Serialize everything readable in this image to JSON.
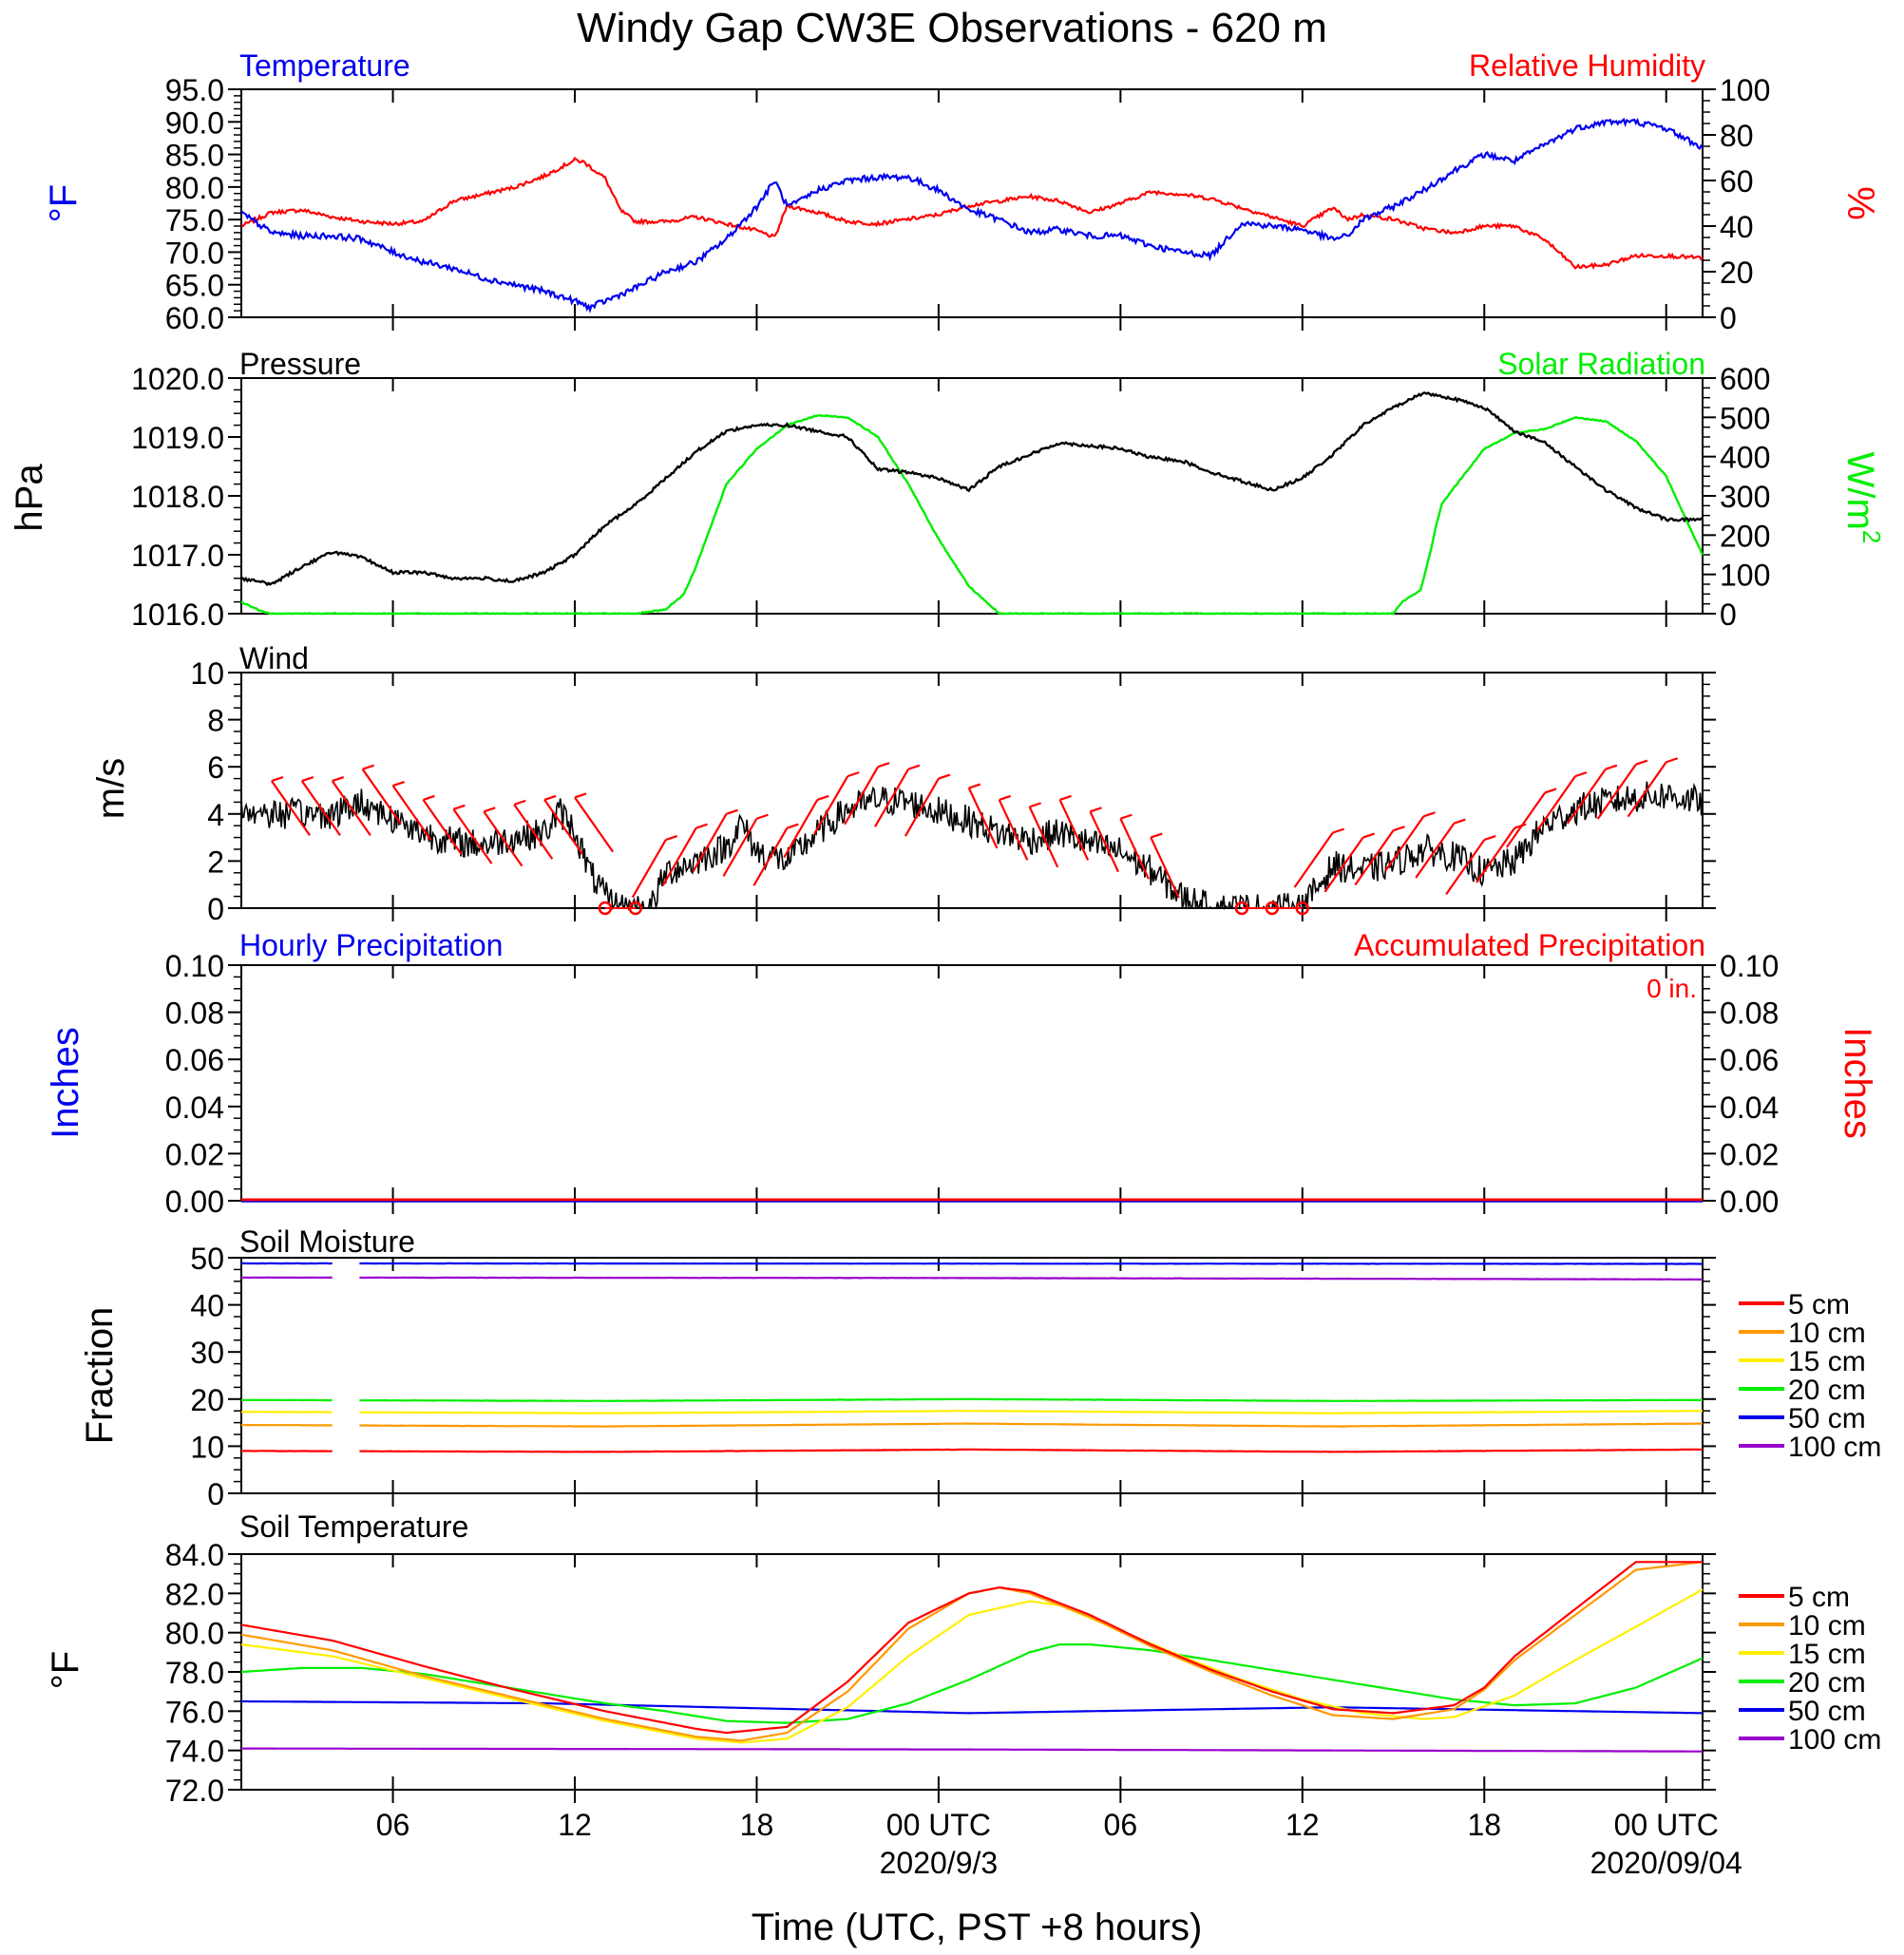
{
  "title": "Windy Gap CW3E Observations - 620 m",
  "x_axis": {
    "label": "Time (UTC, PST +8 hours)",
    "range_hours": [
      0,
      48.2
    ],
    "ticks": [
      {
        "hour": 5,
        "label": "06"
      },
      {
        "hour": 11,
        "label": "12"
      },
      {
        "hour": 17,
        "label": "18"
      },
      {
        "hour": 23,
        "label": "00 UTC",
        "date": "2020/9/3"
      },
      {
        "hour": 29,
        "label": "06"
      },
      {
        "hour": 35,
        "label": "12"
      },
      {
        "hour": 41,
        "label": "18"
      },
      {
        "hour": 47,
        "label": "00 UTC",
        "date": "2020/09/04"
      }
    ]
  },
  "panels": {
    "temp_rh": {
      "left_title": "Temperature",
      "right_title": "Relative Humidity",
      "left_unit": "°F",
      "right_unit": "%",
      "left_ticks": [
        "60.0",
        "65.0",
        "70.0",
        "75.0",
        "80.0",
        "85.0",
        "90.0",
        "95.0"
      ],
      "right_ticks": [
        "0",
        "20",
        "40",
        "60",
        "80",
        "100"
      ]
    },
    "pressure_solar": {
      "left_title": "Pressure",
      "right_title": "Solar Radiation",
      "left_unit": "hPa",
      "right_unit": "W/m",
      "right_unit_sup": "2",
      "left_ticks": [
        "1016.0",
        "1017.0",
        "1018.0",
        "1019.0",
        "1020.0"
      ],
      "right_ticks": [
        "0",
        "100",
        "200",
        "300",
        "400",
        "500",
        "600"
      ]
    },
    "wind": {
      "title": "Wind",
      "unit": "m/s",
      "ticks": [
        "0",
        "2",
        "4",
        "6",
        "8",
        "10"
      ]
    },
    "precip": {
      "left_title": "Hourly Precipitation",
      "right_title": "Accumulated Precipitation",
      "accum_label": "0 in.",
      "left_unit": "Inches",
      "right_unit": "Inches",
      "ticks": [
        "0.00",
        "0.02",
        "0.04",
        "0.06",
        "0.08",
        "0.10"
      ]
    },
    "soil_moisture": {
      "title": "Soil Moisture",
      "unit": "Fraction",
      "ticks": [
        "0",
        "10",
        "20",
        "30",
        "40",
        "50"
      ]
    },
    "soil_temp": {
      "title": "Soil Temperature",
      "unit": "°F",
      "ticks": [
        "72.0",
        "74.0",
        "76.0",
        "78.0",
        "80.0",
        "82.0",
        "84.0"
      ]
    }
  },
  "legend": [
    {
      "label": "5 cm",
      "color": "#ff0000"
    },
    {
      "label": "10 cm",
      "color": "#ff9900"
    },
    {
      "label": "15 cm",
      "color": "#ffee00"
    },
    {
      "label": "20 cm",
      "color": "#00ee00"
    },
    {
      "label": "50 cm",
      "color": "#0000ee"
    },
    {
      "label": "100 cm",
      "color": "#9900cc"
    }
  ],
  "chart_data": [
    {
      "type": "line",
      "panel": "temp_rh",
      "xlabel": "",
      "x_units": "hours since start",
      "series": [
        {
          "name": "Temperature",
          "axis": "left",
          "ylim": [
            60,
            95
          ],
          "color": "#0000ee",
          "x": [
            0,
            1,
            2,
            3,
            4,
            5,
            6,
            7,
            8,
            9,
            10,
            11,
            11.5,
            12,
            13,
            14,
            15,
            16,
            17,
            17.6,
            18,
            18.3,
            19,
            20,
            21,
            22,
            23,
            24,
            25,
            26,
            27,
            28,
            29,
            30,
            31,
            32,
            33,
            34,
            35,
            36,
            36.5,
            37,
            38,
            39,
            40,
            41,
            42,
            43,
            44,
            45,
            46,
            47,
            48.2
          ],
          "y": [
            76,
            73,
            72.5,
            72.5,
            72,
            70,
            68.5,
            67.5,
            66,
            65,
            64,
            62.5,
            61.5,
            62.5,
            64.5,
            67,
            68.5,
            72,
            77,
            81,
            77,
            77.5,
            79.5,
            81,
            81.5,
            81.5,
            79.5,
            76.5,
            75,
            73,
            73.5,
            72.5,
            72.5,
            71,
            70,
            69.5,
            74.5,
            74,
            73.5,
            72,
            72.5,
            75,
            77,
            79.5,
            82.5,
            85,
            84,
            86.5,
            89,
            90,
            90,
            89,
            86
          ]
        },
        {
          "name": "Relative Humidity",
          "axis": "right",
          "ylim": [
            0,
            100
          ],
          "color": "#ff0000",
          "x": [
            0,
            1,
            2,
            3,
            4,
            5,
            6,
            7,
            8,
            9,
            10,
            11,
            11.3,
            12,
            12.5,
            13,
            14,
            15,
            16,
            17,
            17.6,
            18,
            19,
            20,
            21,
            22,
            23,
            24,
            25,
            26,
            27,
            28,
            29,
            30,
            31,
            32,
            33,
            34,
            35,
            36,
            36.5,
            37,
            38,
            39,
            40,
            41,
            42,
            43,
            44,
            45,
            46,
            47,
            48.2
          ],
          "y": [
            40,
            46,
            47,
            44,
            42,
            41,
            42,
            51,
            54,
            57,
            62,
            69,
            68,
            61,
            47,
            42,
            42,
            44,
            41,
            38,
            35,
            49,
            46,
            42,
            41,
            43,
            45,
            49,
            51,
            53,
            51,
            46,
            50,
            55,
            54,
            52,
            48,
            44,
            40,
            48,
            43,
            45,
            43,
            39,
            37,
            40,
            40,
            34,
            22,
            23,
            27,
            27,
            26
          ]
        }
      ]
    },
    {
      "type": "line",
      "panel": "pressure_solar",
      "xlabel": "",
      "x_units": "hours since start",
      "series": [
        {
          "name": "Pressure",
          "axis": "left",
          "ylim": [
            1016,
            1020
          ],
          "color": "#000000",
          "x": [
            0,
            1,
            2,
            3,
            4,
            5,
            6,
            7,
            8,
            9,
            10,
            11,
            12,
            13,
            14,
            15,
            16,
            17,
            18,
            19,
            20,
            21,
            22,
            23,
            24,
            25,
            26,
            27,
            28,
            29,
            30,
            31,
            32,
            33,
            34,
            35,
            36,
            37,
            38,
            39,
            40,
            41,
            42,
            43,
            44,
            45,
            46,
            47,
            48.2
          ],
          "y": [
            1016.6,
            1016.5,
            1016.8,
            1017.05,
            1016.95,
            1016.7,
            1016.7,
            1016.6,
            1016.6,
            1016.55,
            1016.7,
            1017.0,
            1017.5,
            1017.85,
            1018.3,
            1018.75,
            1019.1,
            1019.2,
            1019.2,
            1019.1,
            1019.0,
            1018.45,
            1018.4,
            1018.3,
            1018.1,
            1018.5,
            1018.7,
            1018.9,
            1018.85,
            1018.8,
            1018.65,
            1018.6,
            1018.4,
            1018.25,
            1018.1,
            1018.3,
            1018.7,
            1019.2,
            1019.5,
            1019.75,
            1019.65,
            1019.5,
            1019.1,
            1018.9,
            1018.5,
            1018.1,
            1017.8,
            1017.6,
            1017.6
          ]
        },
        {
          "name": "Solar Radiation",
          "axis": "right",
          "ylim": [
            0,
            600
          ],
          "color": "#00ee00",
          "x": [
            0,
            0.7,
            1,
            12,
            13,
            14,
            14.6,
            15,
            16,
            17,
            18,
            19,
            20,
            21,
            22,
            23,
            24,
            25,
            26,
            38,
            38.3,
            38.9,
            39.2,
            39.4,
            39.6,
            40,
            41,
            42,
            43,
            44,
            45,
            46,
            47,
            48.2
          ],
          "y": [
            30,
            5,
            0,
            0,
            0,
            10,
            50,
            120,
            330,
            420,
            480,
            505,
            500,
            450,
            330,
            190,
            70,
            0,
            0,
            0,
            30,
            60,
            150,
            220,
            280,
            320,
            420,
            460,
            470,
            500,
            490,
            440,
            350,
            150
          ]
        }
      ]
    },
    {
      "type": "line",
      "panel": "wind",
      "xlabel": "",
      "ylabel": "m/s",
      "ylim": [
        0,
        10
      ],
      "x_units": "hours since start",
      "series": [
        {
          "name": "Wind speed",
          "color": "#000000",
          "x": [
            0,
            1,
            2,
            3,
            4,
            5,
            6,
            7,
            8,
            9,
            10,
            10.5,
            11,
            11.5,
            12,
            12.5,
            13,
            13.5,
            14,
            15,
            16,
            16.5,
            17,
            18,
            19,
            20,
            21,
            22,
            23,
            24,
            25,
            26,
            27,
            28,
            29,
            30,
            31,
            32,
            33,
            34,
            35,
            36,
            37,
            38,
            39,
            40,
            41,
            42,
            43,
            44,
            45,
            46,
            47,
            48.2
          ],
          "y": [
            4.2,
            4.0,
            4.0,
            4.0,
            4.5,
            3.8,
            3.2,
            2.8,
            2.7,
            3.0,
            3.2,
            4.1,
            3.3,
            1.5,
            0.5,
            0,
            0,
            0,
            1.5,
            2.0,
            2.6,
            3.6,
            2.4,
            2.0,
            3.2,
            4.2,
            4.6,
            4.5,
            4.1,
            3.7,
            3.2,
            2.9,
            3.2,
            2.7,
            2.4,
            1.6,
            0.5,
            0,
            0,
            0,
            0,
            1.8,
            1.6,
            1.9,
            2.5,
            2.2,
            1.5,
            2.0,
            3.5,
            4.2,
            4.5,
            4.7,
            4.8,
            4.5
          ]
        }
      ],
      "calm_markers_hours": [
        12,
        13,
        33,
        34,
        35
      ]
    },
    {
      "type": "line",
      "panel": "precip",
      "xlabel": "",
      "ylim": [
        0,
        0.1
      ],
      "series": [
        {
          "name": "Hourly Precipitation",
          "color": "#0000ee",
          "x": [
            0,
            48.2
          ],
          "y": [
            0,
            0
          ]
        },
        {
          "name": "Accumulated Precipitation",
          "color": "#ff0000",
          "x": [
            0,
            48.2
          ],
          "y": [
            0,
            0
          ]
        }
      ]
    },
    {
      "type": "line",
      "panel": "soil_moisture",
      "xlabel": "",
      "ylabel": "Fraction",
      "ylim": [
        0,
        50
      ],
      "gap_hours": [
        3.1,
        3.9
      ],
      "series": [
        {
          "name": "5 cm",
          "x": [
            0,
            12,
            24,
            36,
            48.2
          ],
          "y": [
            9.0,
            8.8,
            9.3,
            8.8,
            9.3
          ]
        },
        {
          "name": "10 cm",
          "x": [
            0,
            12,
            24,
            36,
            48.2
          ],
          "y": [
            14.5,
            14.2,
            14.8,
            14.2,
            14.8
          ]
        },
        {
          "name": "15 cm",
          "x": [
            0,
            12,
            24,
            36,
            48.2
          ],
          "y": [
            17.3,
            17.0,
            17.5,
            17.0,
            17.5
          ]
        },
        {
          "name": "20 cm",
          "x": [
            0,
            12,
            24,
            36,
            48.2
          ],
          "y": [
            19.8,
            19.6,
            20.0,
            19.6,
            19.8
          ]
        },
        {
          "name": "50 cm",
          "x": [
            0,
            48.2
          ],
          "y": [
            48.8,
            48.7
          ]
        },
        {
          "name": "100 cm",
          "x": [
            0,
            24,
            48.2
          ],
          "y": [
            45.8,
            45.7,
            45.4
          ]
        }
      ]
    },
    {
      "type": "line",
      "panel": "soil_temp",
      "xlabel": "",
      "ylabel": "°F",
      "ylim": [
        72,
        84
      ],
      "series": [
        {
          "name": "5 cm",
          "x": [
            0,
            3,
            6,
            9,
            12,
            15,
            16,
            18,
            20,
            22,
            24,
            25,
            26,
            28,
            30,
            32,
            34,
            36,
            38,
            40,
            41,
            42,
            44,
            46,
            48.2
          ],
          "y": [
            80.4,
            79.6,
            78.3,
            77.1,
            76.0,
            75.1,
            74.9,
            75.2,
            77.5,
            80.5,
            82.0,
            82.3,
            82.1,
            80.9,
            79.4,
            78.1,
            77.0,
            76.1,
            75.9,
            76.3,
            77.2,
            78.8,
            81.2,
            83.6,
            83.6
          ]
        },
        {
          "name": "10 cm",
          "x": [
            0,
            3,
            6,
            9,
            12,
            15,
            16.5,
            18,
            20,
            22,
            24,
            25,
            26,
            28,
            30,
            32,
            34,
            36,
            38,
            40,
            41,
            42,
            44,
            46,
            48.2
          ],
          "y": [
            79.9,
            79.1,
            77.8,
            76.7,
            75.6,
            74.7,
            74.5,
            74.9,
            77.0,
            80.2,
            82.0,
            82.3,
            82.0,
            80.8,
            79.3,
            78.0,
            76.8,
            75.8,
            75.6,
            76.1,
            77.1,
            78.6,
            80.9,
            83.2,
            83.6
          ]
        },
        {
          "name": "15 cm",
          "x": [
            0,
            3,
            6,
            9,
            12,
            15,
            16.5,
            18,
            20,
            22,
            24,
            26,
            27,
            29,
            31,
            33,
            35,
            37,
            39,
            40,
            42,
            44,
            46,
            48.2
          ],
          "y": [
            79.4,
            78.8,
            77.7,
            76.6,
            75.5,
            74.6,
            74.4,
            74.6,
            76.2,
            78.8,
            80.9,
            81.6,
            81.4,
            80.1,
            78.8,
            77.6,
            76.6,
            75.9,
            75.6,
            75.7,
            76.8,
            78.6,
            80.3,
            82.2
          ]
        },
        {
          "name": "20 cm",
          "x": [
            0,
            2,
            4,
            6,
            8,
            10,
            12,
            14,
            16,
            18,
            20,
            22,
            24,
            26,
            27,
            28,
            30,
            32,
            34,
            36,
            38,
            40,
            42,
            44,
            46,
            48.2
          ],
          "y": [
            78.0,
            78.2,
            78.2,
            77.9,
            77.4,
            76.9,
            76.4,
            76.0,
            75.5,
            75.4,
            75.6,
            76.4,
            77.6,
            79.0,
            79.4,
            79.4,
            79.1,
            78.6,
            78.1,
            77.6,
            77.1,
            76.6,
            76.3,
            76.4,
            77.2,
            78.7
          ]
        },
        {
          "name": "50 cm",
          "x": [
            0,
            10,
            24,
            36,
            48.2
          ],
          "y": [
            76.5,
            76.4,
            75.9,
            76.2,
            75.9
          ]
        },
        {
          "name": "100 cm",
          "x": [
            0,
            24,
            48.2
          ],
          "y": [
            74.1,
            74.05,
            73.95
          ]
        }
      ]
    }
  ]
}
